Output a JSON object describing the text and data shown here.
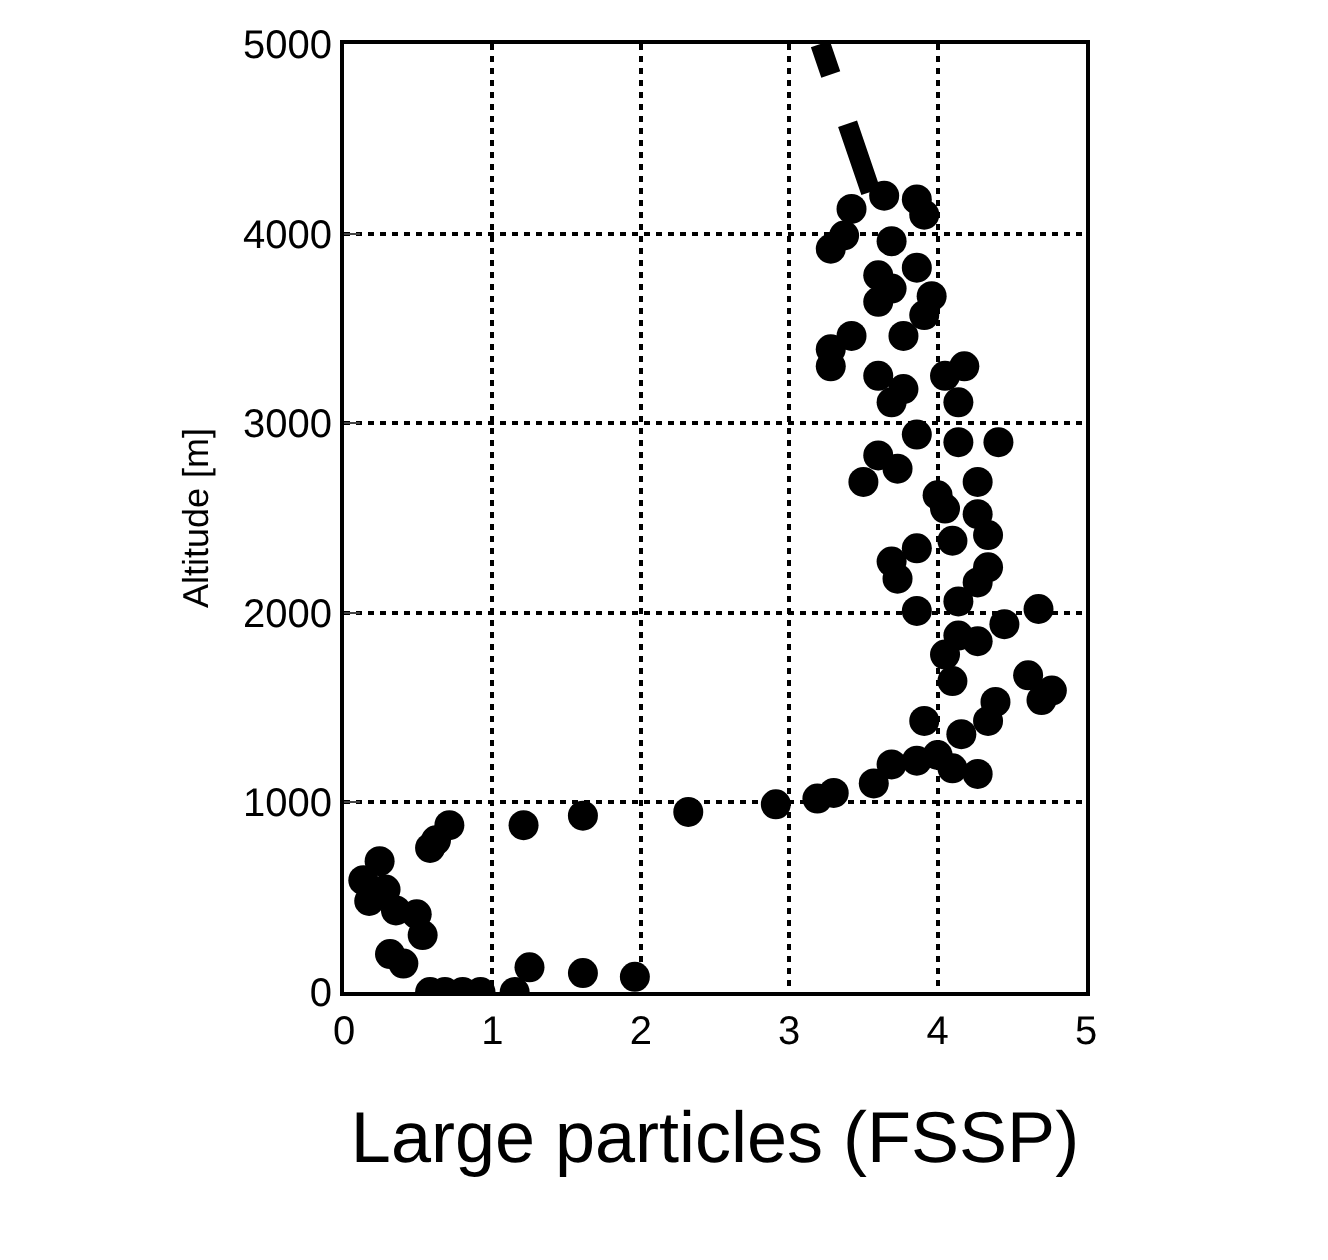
{
  "chart_data": {
    "type": "scatter",
    "xlabel": "Large particles (FSSP)",
    "ylabel": "Altitude [m]",
    "xlim": [
      0,
      5
    ],
    "xticks": [
      0,
      1,
      2,
      3,
      4,
      5
    ],
    "ylim": [
      0,
      5000
    ],
    "yticks": [
      0,
      1000,
      2000,
      3000,
      4000,
      5000
    ],
    "grid": true,
    "marker": "circle",
    "series": [
      {
        "color": "#000000",
        "x": [
          0.58,
          0.68,
          0.8,
          0.92,
          1.15,
          1.25,
          1.61,
          1.96,
          0.71,
          0.62,
          0.58,
          1.21,
          1.61,
          2.32,
          2.91,
          3.19,
          3.3,
          0.24,
          0.13,
          0.17,
          0.35,
          0.49,
          0.53,
          0.31,
          0.4,
          0.28,
          3.57,
          3.69,
          3.86,
          4.0,
          4.27,
          4.1,
          3.91,
          4.16,
          4.34,
          4.39,
          4.61,
          4.77,
          4.7,
          4.1,
          4.05,
          4.14,
          4.27,
          4.45,
          4.68,
          3.86,
          4.14,
          4.27,
          3.73,
          3.69,
          3.86,
          4.1,
          4.34,
          4.34,
          4.27,
          4.05,
          3.5,
          3.73,
          4.0,
          4.27,
          4.41,
          4.14,
          3.86,
          3.6,
          3.69,
          4.14,
          4.05,
          4.18,
          3.6,
          3.77,
          3.28,
          3.28,
          3.42,
          3.6,
          3.91,
          3.96,
          3.86,
          3.69,
          3.28,
          3.37,
          3.42,
          3.64,
          3.86,
          3.91,
          3.69,
          3.6,
          3.77
        ],
        "values": [
          0,
          0,
          0,
          0,
          0,
          130,
          100,
          80,
          880,
          800,
          760,
          880,
          930,
          950,
          990,
          1020,
          1050,
          690,
          590,
          480,
          430,
          410,
          300,
          200,
          150,
          540,
          1100,
          1200,
          1220,
          1250,
          1150,
          1180,
          1430,
          1360,
          1430,
          1530,
          1670,
          1590,
          1540,
          1640,
          1780,
          1880,
          1850,
          1940,
          2020,
          2010,
          2060,
          2160,
          2180,
          2270,
          2340,
          2380,
          2410,
          2240,
          2520,
          2550,
          2690,
          2760,
          2620,
          2690,
          2900,
          2900,
          2940,
          2830,
          3110,
          3110,
          3250,
          3300,
          3250,
          3180,
          3390,
          3300,
          3460,
          3640,
          3570,
          3670,
          3820,
          3710,
          3920,
          3990,
          4130,
          4200,
          4180,
          4100,
          3960,
          3780,
          3460
        ]
      },
      {
        "type": "line",
        "color": "#000000",
        "line_style": "dashed",
        "marker": "none",
        "x": [
          3.55,
          3.21
        ],
        "values": [
          4220,
          5000
        ]
      }
    ]
  }
}
